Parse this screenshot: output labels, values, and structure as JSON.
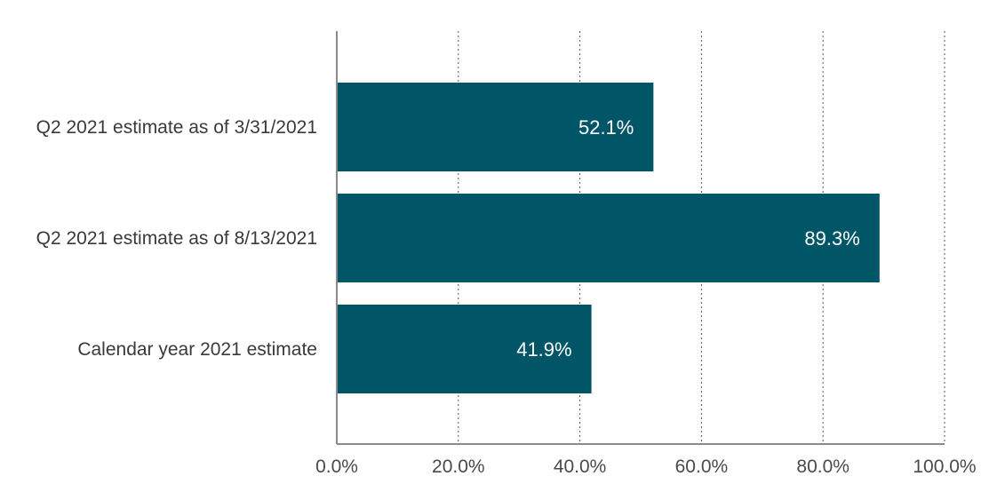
{
  "chart_data": {
    "type": "bar",
    "orientation": "horizontal",
    "categories": [
      "Q2 2021 estimate as of 3/31/2021",
      "Q2 2021 estimate as of 8/13/2021",
      "Calendar year 2021 estimate"
    ],
    "values": [
      52.1,
      89.3,
      41.9
    ],
    "data_labels": [
      "52.1%",
      "89.3%",
      "41.9%"
    ],
    "x_ticks": [
      "0.0%",
      "20.0%",
      "40.0%",
      "60.0%",
      "80.0%",
      "100.0%"
    ],
    "xlim": [
      0,
      100
    ],
    "title": "",
    "xlabel": "",
    "ylabel": "",
    "grid": "vertical dotted",
    "legend": "none",
    "bar_color": "#005566"
  }
}
